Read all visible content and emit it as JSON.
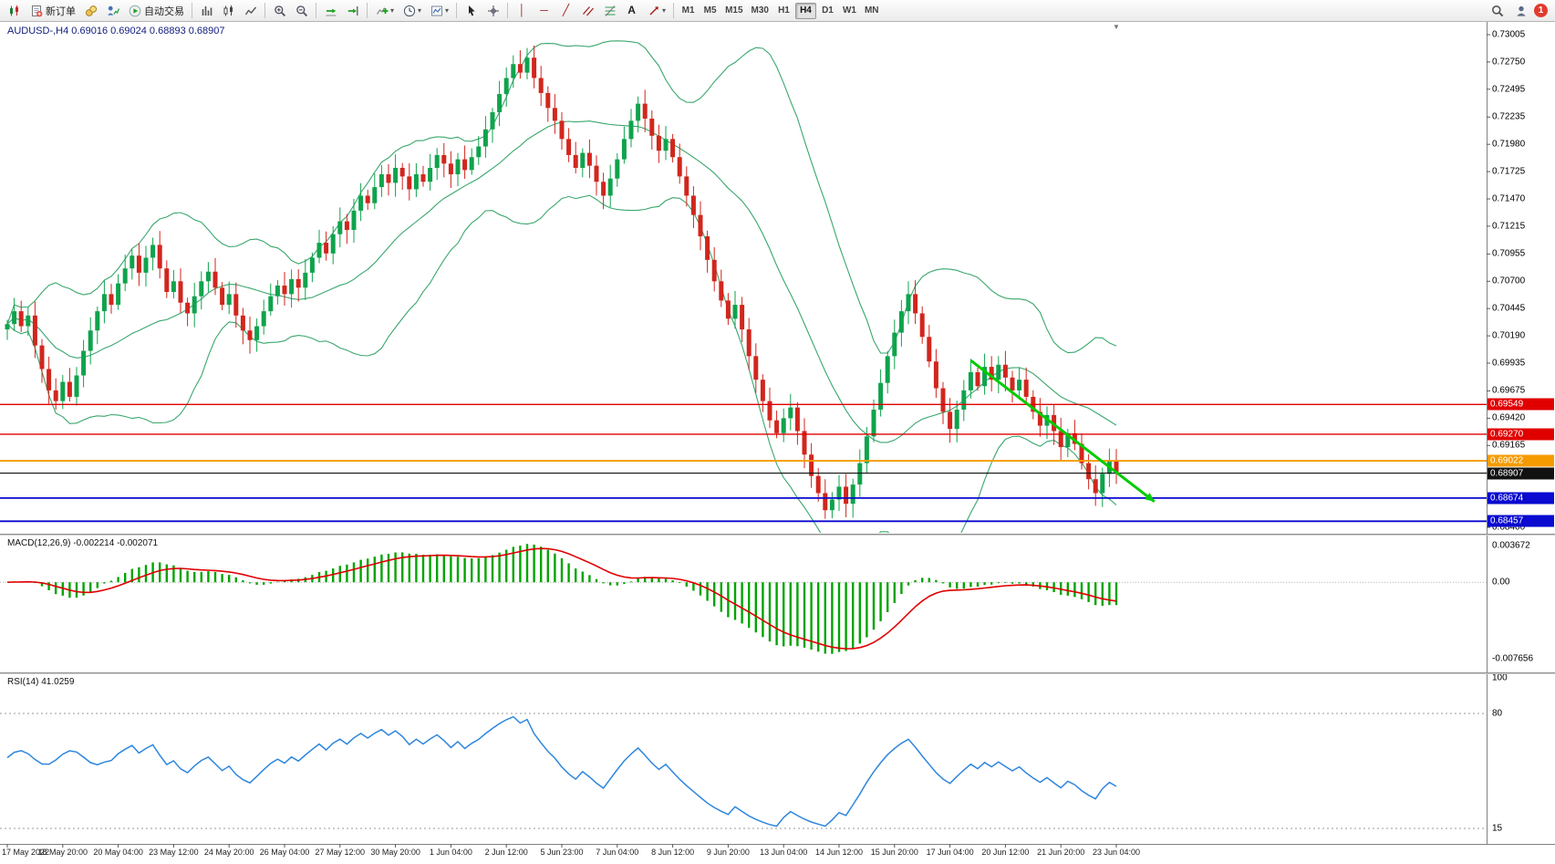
{
  "toolbar": {
    "groups": [
      {
        "items": [
          {
            "name": "new-chart-button",
            "icon": "candlechart"
          },
          {
            "name": "new-order-button",
            "icon": "neworder",
            "label": "新订单"
          },
          {
            "name": "market-watch-button",
            "icon": "coins"
          },
          {
            "name": "navigator-button",
            "icon": "userchart"
          },
          {
            "name": "autotrading-button",
            "icon": "play",
            "label": "自动交易"
          }
        ]
      },
      {
        "items": [
          {
            "name": "bar-chart-button",
            "icon": "barchart"
          },
          {
            "name": "candlestick-chart-button",
            "icon": "candlechart2"
          },
          {
            "name": "line-chart-button",
            "icon": "linechart"
          }
        ]
      },
      {
        "items": [
          {
            "name": "zoom-in-button",
            "icon": "zoomin"
          },
          {
            "name": "zoom-out-button",
            "icon": "zoomout"
          }
        ]
      },
      {
        "items": [
          {
            "name": "auto-scroll-button",
            "icon": "autoscroll"
          },
          {
            "name": "chart-shift-button",
            "icon": "chartshift"
          }
        ]
      },
      {
        "items": [
          {
            "name": "indicators-button",
            "icon": "indicators",
            "caret": true
          },
          {
            "name": "periods-button",
            "icon": "clock",
            "caret": true
          },
          {
            "name": "templates-button",
            "icon": "template",
            "caret": true
          }
        ]
      },
      {
        "items": [
          {
            "name": "cursor-button",
            "icon": "cursor"
          },
          {
            "name": "crosshair-button",
            "icon": "crosshair"
          }
        ]
      },
      {
        "items": [
          {
            "name": "vertical-line-button",
            "glyph": "│",
            "color": "#a02020"
          },
          {
            "name": "horizontal-line-button",
            "glyph": "─",
            "color": "#a02020"
          },
          {
            "name": "trendline-button",
            "glyph": "╱",
            "color": "#a02020"
          },
          {
            "name": "channel-button",
            "icon": "channel"
          },
          {
            "name": "fibonacci-button",
            "icon": "fibo"
          },
          {
            "name": "text-button",
            "glyph": "A",
            "color": "#222"
          },
          {
            "name": "arrows-button",
            "icon": "arrowtool",
            "caret": true
          }
        ]
      }
    ],
    "timeframes": [
      "M1",
      "M5",
      "M15",
      "M30",
      "H1",
      "H4",
      "D1",
      "W1",
      "MN"
    ],
    "active_timeframe": "H4",
    "right": {
      "notification_count": "1"
    }
  },
  "chart": {
    "symbol_period": "AUDUSD-,H4",
    "ohlc_values": "0.69016 0.69024 0.68893 0.68907",
    "macd_title": "MACD(12,26,9)",
    "macd_values": "-0.002214 -0.002071",
    "rsi_title": "RSI(14)",
    "rsi_value": "41.0259"
  },
  "chart_data": {
    "type": "candlestick",
    "symbol": "AUDUSD",
    "timeframe": "H4",
    "price_axis": {
      "labels": [
        "0.73005",
        "0.72750",
        "0.72495",
        "0.72235",
        "0.71980",
        "0.71725",
        "0.71470",
        "0.71215",
        "0.70955",
        "0.70700",
        "0.70445",
        "0.70190",
        "0.69935",
        "0.69675",
        "0.69420",
        "0.69165",
        "0.68910",
        "0.68655",
        "0.68400"
      ],
      "max": 0.73005,
      "min": 0.684
    },
    "time_axis": [
      "17 May 2022",
      "18 May 20:00",
      "20 May 04:00",
      "23 May 12:00",
      "24 May 20:00",
      "26 May 04:00",
      "27 May 12:00",
      "30 May 20:00",
      "1 Jun 04:00",
      "2 Jun 12:00",
      "5 Jun 23:00",
      "7 Jun 04:00",
      "8 Jun 12:00",
      "9 Jun 20:00",
      "13 Jun 04:00",
      "14 Jun 12:00",
      "15 Jun 20:00",
      "17 Jun 04:00",
      "20 Jun 12:00",
      "21 Jun 20:00",
      "23 Jun 04:00"
    ],
    "first_open": 0.7025,
    "closes": [
      0.703,
      0.7042,
      0.7028,
      0.7038,
      0.701,
      0.6988,
      0.6968,
      0.6958,
      0.6976,
      0.6962,
      0.6982,
      0.7005,
      0.7024,
      0.7042,
      0.7058,
      0.7048,
      0.7068,
      0.7082,
      0.7094,
      0.7078,
      0.7092,
      0.7104,
      0.7082,
      0.706,
      0.707,
      0.705,
      0.704,
      0.7056,
      0.707,
      0.7079,
      0.7064,
      0.7048,
      0.7058,
      0.7038,
      0.7024,
      0.7015,
      0.7028,
      0.7042,
      0.7056,
      0.7066,
      0.7058,
      0.7072,
      0.7064,
      0.7078,
      0.7092,
      0.7106,
      0.7096,
      0.7114,
      0.7126,
      0.7118,
      0.7136,
      0.715,
      0.7143,
      0.7158,
      0.717,
      0.7162,
      0.7176,
      0.7168,
      0.7156,
      0.717,
      0.7163,
      0.7176,
      0.7188,
      0.718,
      0.717,
      0.7184,
      0.7174,
      0.7186,
      0.7196,
      0.7212,
      0.7228,
      0.7245,
      0.726,
      0.7273,
      0.7265,
      0.7279,
      0.726,
      0.7246,
      0.7232,
      0.722,
      0.7203,
      0.7188,
      0.7176,
      0.719,
      0.7178,
      0.7163,
      0.715,
      0.7166,
      0.7184,
      0.7203,
      0.722,
      0.7236,
      0.7222,
      0.7206,
      0.7192,
      0.7203,
      0.7186,
      0.7168,
      0.715,
      0.7132,
      0.7112,
      0.709,
      0.707,
      0.7052,
      0.7035,
      0.7048,
      0.7025,
      0.7,
      0.6978,
      0.6958,
      0.694,
      0.6928,
      0.6942,
      0.6952,
      0.693,
      0.6908,
      0.6888,
      0.6872,
      0.6856,
      0.6866,
      0.6878,
      0.6862,
      0.688,
      0.69,
      0.6925,
      0.695,
      0.6975,
      0.7,
      0.7022,
      0.7042,
      0.7058,
      0.704,
      0.7018,
      0.6995,
      0.697,
      0.6948,
      0.6932,
      0.695,
      0.6968,
      0.6985,
      0.6972,
      0.699,
      0.6978,
      0.6992,
      0.698,
      0.6968,
      0.6978,
      0.6962,
      0.6948,
      0.6935,
      0.6945,
      0.693,
      0.6915,
      0.6928,
      0.6918,
      0.69,
      0.6885,
      0.6872,
      0.689,
      0.6902,
      0.68907
    ],
    "wick_overrides": {
      "7": {
        "low": 0.695
      },
      "75": {
        "high": 0.7288
      },
      "118": {
        "low": 0.6848
      },
      "130": {
        "high": 0.707
      }
    },
    "candle_colors": {
      "up": "#0fa34c",
      "down": "#d1261d"
    },
    "bollinger": {
      "period": 20,
      "deviation": 2,
      "color": "#3aa76d"
    },
    "hlines": [
      {
        "price": 0.69549,
        "label": "0.69549",
        "color": "#e00000",
        "width": 1.4
      },
      {
        "price": 0.6927,
        "label": "0.69270",
        "color": "#e00000",
        "width": 1.4
      },
      {
        "price": 0.69022,
        "label": "0.69022",
        "color": "#f59b00",
        "width": 1.8
      },
      {
        "price": 0.68907,
        "label": "0.68907",
        "color": "#111111",
        "width": 1.1
      },
      {
        "price": 0.68674,
        "label": "0.68674",
        "color": "#0a0ad0",
        "width": 1.8
      },
      {
        "price": 0.68457,
        "label": "0.68457",
        "color": "#0a0ad0",
        "width": 1.8
      }
    ],
    "trendline": {
      "from_index": 139,
      "from_price": 0.6996,
      "to_index": 165.5,
      "to_price": 0.6864,
      "color": "#00cc00"
    },
    "macd": {
      "scale": [
        "0.003672",
        "0.00",
        "-0.007656"
      ],
      "hist_color": "#00a400",
      "signal_color": "#e00000"
    },
    "rsi": {
      "scale": [
        "100",
        "80",
        "15"
      ],
      "levels": [
        80,
        15
      ],
      "color": "#2e86de"
    },
    "shift_marker_glyph": "▼"
  }
}
